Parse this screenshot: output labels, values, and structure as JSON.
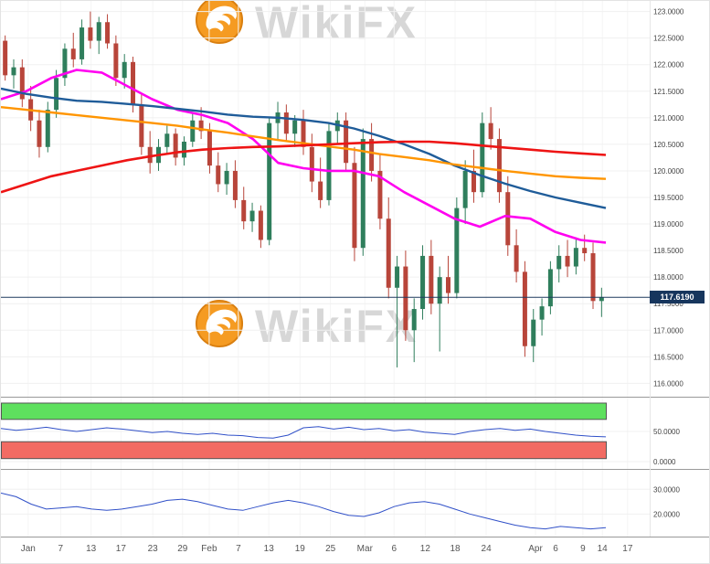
{
  "watermark": {
    "text": "WikiFX",
    "logo_fill": "#f59b22",
    "logo_ring": "#d97f10",
    "text_color": "#d7d7d7"
  },
  "price_badge": {
    "label": "117.6190"
  },
  "chart_data": {
    "type": "candlestick",
    "title": "",
    "legend_position": "none",
    "grid": true,
    "x_ticks": [
      {
        "label": "Jan",
        "pos": 0.042
      },
      {
        "label": "7",
        "pos": 0.092
      },
      {
        "label": "13",
        "pos": 0.139
      },
      {
        "label": "17",
        "pos": 0.185
      },
      {
        "label": "23",
        "pos": 0.234
      },
      {
        "label": "29",
        "pos": 0.28
      },
      {
        "label": "Feb",
        "pos": 0.321
      },
      {
        "label": "7",
        "pos": 0.366
      },
      {
        "label": "13",
        "pos": 0.413
      },
      {
        "label": "19",
        "pos": 0.461
      },
      {
        "label": "25",
        "pos": 0.508
      },
      {
        "label": "Mar",
        "pos": 0.561
      },
      {
        "label": "6",
        "pos": 0.606
      },
      {
        "label": "12",
        "pos": 0.654
      },
      {
        "label": "18",
        "pos": 0.7
      },
      {
        "label": "24",
        "pos": 0.748
      },
      {
        "label": "Apr",
        "pos": 0.824
      },
      {
        "label": "6",
        "pos": 0.855
      },
      {
        "label": "9",
        "pos": 0.897
      },
      {
        "label": "14",
        "pos": 0.927
      },
      {
        "label": "17",
        "pos": 0.966
      }
    ],
    "price_panel": {
      "y_range": [
        115.8,
        123.2
      ],
      "y_ticks": [
        {
          "label": "123.0000",
          "value": 123.0
        },
        {
          "label": "122.5000",
          "value": 122.5
        },
        {
          "label": "122.0000",
          "value": 122.0
        },
        {
          "label": "121.5000",
          "value": 121.5
        },
        {
          "label": "121.0000",
          "value": 121.0
        },
        {
          "label": "120.5000",
          "value": 120.5
        },
        {
          "label": "120.0000",
          "value": 120.0
        },
        {
          "label": "119.5000",
          "value": 119.5
        },
        {
          "label": "119.0000",
          "value": 119.0
        },
        {
          "label": "118.5000",
          "value": 118.5
        },
        {
          "label": "118.0000",
          "value": 118.0
        },
        {
          "label": "117.5000",
          "value": 117.5
        },
        {
          "label": "117.0000",
          "value": 117.0
        },
        {
          "label": "116.5000",
          "value": 116.5
        },
        {
          "label": "116.0000",
          "value": 116.0
        }
      ],
      "last_price": 117.619,
      "candles": [
        [
          122.45,
          122.55,
          121.7,
          121.8
        ],
        [
          121.8,
          122.1,
          121.55,
          121.95
        ],
        [
          121.95,
          122.1,
          121.2,
          121.35
        ],
        [
          121.35,
          121.6,
          120.75,
          120.95
        ],
        [
          120.95,
          121.15,
          120.25,
          120.45
        ],
        [
          120.45,
          121.3,
          120.35,
          121.15
        ],
        [
          121.15,
          121.9,
          121.0,
          121.75
        ],
        [
          121.75,
          122.4,
          121.6,
          122.3
        ],
        [
          122.3,
          122.6,
          121.95,
          122.1
        ],
        [
          122.1,
          122.85,
          122.0,
          122.7
        ],
        [
          122.7,
          123.0,
          122.3,
          122.45
        ],
        [
          122.45,
          122.9,
          122.2,
          122.8
        ],
        [
          122.8,
          122.95,
          122.3,
          122.4
        ],
        [
          122.4,
          122.55,
          121.6,
          121.75
        ],
        [
          121.75,
          122.2,
          121.55,
          122.05
        ],
        [
          122.05,
          122.15,
          121.1,
          121.25
        ],
        [
          121.25,
          121.45,
          120.3,
          120.45
        ],
        [
          120.45,
          120.75,
          119.95,
          120.15
        ],
        [
          120.15,
          120.6,
          120.0,
          120.45
        ],
        [
          120.45,
          120.85,
          120.3,
          120.7
        ],
        [
          120.7,
          120.8,
          120.1,
          120.25
        ],
        [
          120.25,
          120.65,
          120.1,
          120.55
        ],
        [
          120.55,
          121.1,
          120.45,
          120.95
        ],
        [
          120.95,
          121.2,
          120.6,
          120.75
        ],
        [
          120.75,
          120.9,
          119.95,
          120.1
        ],
        [
          120.1,
          120.35,
          119.6,
          119.75
        ],
        [
          119.75,
          120.15,
          119.55,
          120.0
        ],
        [
          120.0,
          120.2,
          119.3,
          119.45
        ],
        [
          119.45,
          119.7,
          118.9,
          119.05
        ],
        [
          119.05,
          119.4,
          118.85,
          119.25
        ],
        [
          119.25,
          119.35,
          118.55,
          118.7
        ],
        [
          118.7,
          121.0,
          118.6,
          120.9
        ],
        [
          120.9,
          121.3,
          120.6,
          121.1
        ],
        [
          121.1,
          121.25,
          120.55,
          120.7
        ],
        [
          120.7,
          121.05,
          120.45,
          120.95
        ],
        [
          120.95,
          121.15,
          120.3,
          120.45
        ],
        [
          120.45,
          120.7,
          119.6,
          119.8
        ],
        [
          119.8,
          120.25,
          119.3,
          119.45
        ],
        [
          119.45,
          120.9,
          119.35,
          120.75
        ],
        [
          120.75,
          121.1,
          120.5,
          120.95
        ],
        [
          120.95,
          121.1,
          120.0,
          120.15
        ],
        [
          120.15,
          120.45,
          118.3,
          118.55
        ],
        [
          118.55,
          120.8,
          118.4,
          120.6
        ],
        [
          120.6,
          120.9,
          119.8,
          120.0
        ],
        [
          120.0,
          120.3,
          118.9,
          119.1
        ],
        [
          119.1,
          119.5,
          117.6,
          117.8
        ],
        [
          117.8,
          118.4,
          116.3,
          118.2
        ],
        [
          118.2,
          118.5,
          116.8,
          117.0
        ],
        [
          117.0,
          117.6,
          116.4,
          117.4
        ],
        [
          117.4,
          118.6,
          117.2,
          118.4
        ],
        [
          118.4,
          118.7,
          117.3,
          117.5
        ],
        [
          117.5,
          118.2,
          116.6,
          118.0
        ],
        [
          118.0,
          118.4,
          117.5,
          117.7
        ],
        [
          117.7,
          119.5,
          117.6,
          119.3
        ],
        [
          119.3,
          120.2,
          119.0,
          120.0
        ],
        [
          120.0,
          120.4,
          119.4,
          119.6
        ],
        [
          119.6,
          121.1,
          119.5,
          120.9
        ],
        [
          120.9,
          121.2,
          120.4,
          120.6
        ],
        [
          120.6,
          120.8,
          119.4,
          119.6
        ],
        [
          119.6,
          119.9,
          118.4,
          118.6
        ],
        [
          118.6,
          118.9,
          117.9,
          118.1
        ],
        [
          118.1,
          118.3,
          116.5,
          116.7
        ],
        [
          116.7,
          117.4,
          116.4,
          117.2
        ],
        [
          117.2,
          117.6,
          116.9,
          117.45
        ],
        [
          117.45,
          118.3,
          117.3,
          118.15
        ],
        [
          118.15,
          118.6,
          117.9,
          118.4
        ],
        [
          118.4,
          118.7,
          118.0,
          118.2
        ],
        [
          118.2,
          118.75,
          118.05,
          118.55
        ],
        [
          118.55,
          118.8,
          118.3,
          118.45
        ],
        [
          118.45,
          118.65,
          117.4,
          117.55
        ],
        [
          117.55,
          117.8,
          117.25,
          117.62
        ]
      ],
      "moving_averages": [
        {
          "name": "ma-fast-magenta",
          "color": "#ff00f0",
          "width": 2.6,
          "values": [
            121.35,
            121.5,
            121.75,
            121.9,
            121.85,
            121.6,
            121.35,
            121.15,
            121.05,
            120.9,
            120.6,
            120.15,
            120.05,
            120.0,
            120.0,
            119.9,
            119.6,
            119.35,
            119.1,
            118.95,
            119.15,
            119.1,
            118.85,
            118.7,
            118.65
          ]
        },
        {
          "name": "ma-mid-blue",
          "color": "#1f5c99",
          "width": 2.4,
          "values": [
            121.55,
            121.45,
            121.38,
            121.32,
            121.3,
            121.26,
            121.22,
            121.17,
            121.12,
            121.06,
            121.02,
            121.0,
            120.96,
            120.9,
            120.8,
            120.66,
            120.5,
            120.32,
            120.1,
            119.92,
            119.76,
            119.62,
            119.5,
            119.4,
            119.3
          ]
        },
        {
          "name": "ma-slow-orange",
          "color": "#ff9500",
          "width": 2.4,
          "values": [
            121.2,
            121.15,
            121.1,
            121.05,
            121.0,
            120.95,
            120.9,
            120.85,
            120.78,
            120.72,
            120.65,
            120.58,
            120.52,
            120.46,
            120.4,
            120.32,
            120.26,
            120.2,
            120.12,
            120.06,
            120.0,
            119.95,
            119.9,
            119.87,
            119.85
          ]
        },
        {
          "name": "ma-longest-red",
          "color": "#ee1414",
          "width": 2.6,
          "values": [
            119.6,
            119.75,
            119.9,
            120.0,
            120.1,
            120.2,
            120.28,
            120.35,
            120.4,
            120.43,
            120.45,
            120.46,
            120.48,
            120.5,
            120.52,
            120.54,
            120.55,
            120.55,
            120.52,
            120.48,
            120.44,
            120.4,
            120.36,
            120.33,
            120.3
          ]
        }
      ]
    },
    "oscillator_panel": {
      "y_range": [
        0,
        100
      ],
      "y_ticks": [
        {
          "label": "50.0000",
          "value": 50
        },
        {
          "label": "0.0000",
          "value": 0
        }
      ],
      "bands": [
        {
          "name": "overbought-band",
          "color": "#5ee05e",
          "from": 70,
          "to": 97
        },
        {
          "name": "oversold-band",
          "color": "#f26b63",
          "from": 5,
          "to": 33
        }
      ],
      "line": {
        "color": "#3050c8",
        "values": [
          55,
          52,
          54,
          57,
          53,
          50,
          53,
          56,
          54,
          51,
          48,
          50,
          47,
          45,
          47,
          44,
          43,
          40,
          39,
          44,
          56,
          58,
          54,
          57,
          53,
          55,
          51,
          53,
          49,
          47,
          45,
          50,
          53,
          55,
          52,
          54,
          50,
          47,
          44,
          42,
          41
        ]
      }
    },
    "bottom_panel": {
      "y_range": [
        12,
        36
      ],
      "y_ticks": [
        {
          "label": "30.0000",
          "value": 30
        },
        {
          "label": "20.0000",
          "value": 20
        }
      ],
      "line": {
        "color": "#3050c8",
        "values": [
          28.5,
          27,
          24,
          22,
          22.5,
          23,
          22,
          21.5,
          22,
          23,
          24,
          25.5,
          26,
          25,
          23.5,
          22,
          21.5,
          23,
          24.5,
          25.5,
          24.5,
          23,
          21,
          19.5,
          19,
          20.5,
          23,
          24.5,
          25,
          24,
          22,
          20,
          18.5,
          17,
          15.5,
          14.5,
          14,
          15,
          14.5,
          14,
          14.5
        ]
      }
    },
    "colors": {
      "up": "#2f7e5c",
      "down": "#b8453a",
      "price_line": "#1e3a5f",
      "grid": "#f0f0f0",
      "vgrid": "#f5f5f5",
      "axis_text": "#444444"
    }
  }
}
